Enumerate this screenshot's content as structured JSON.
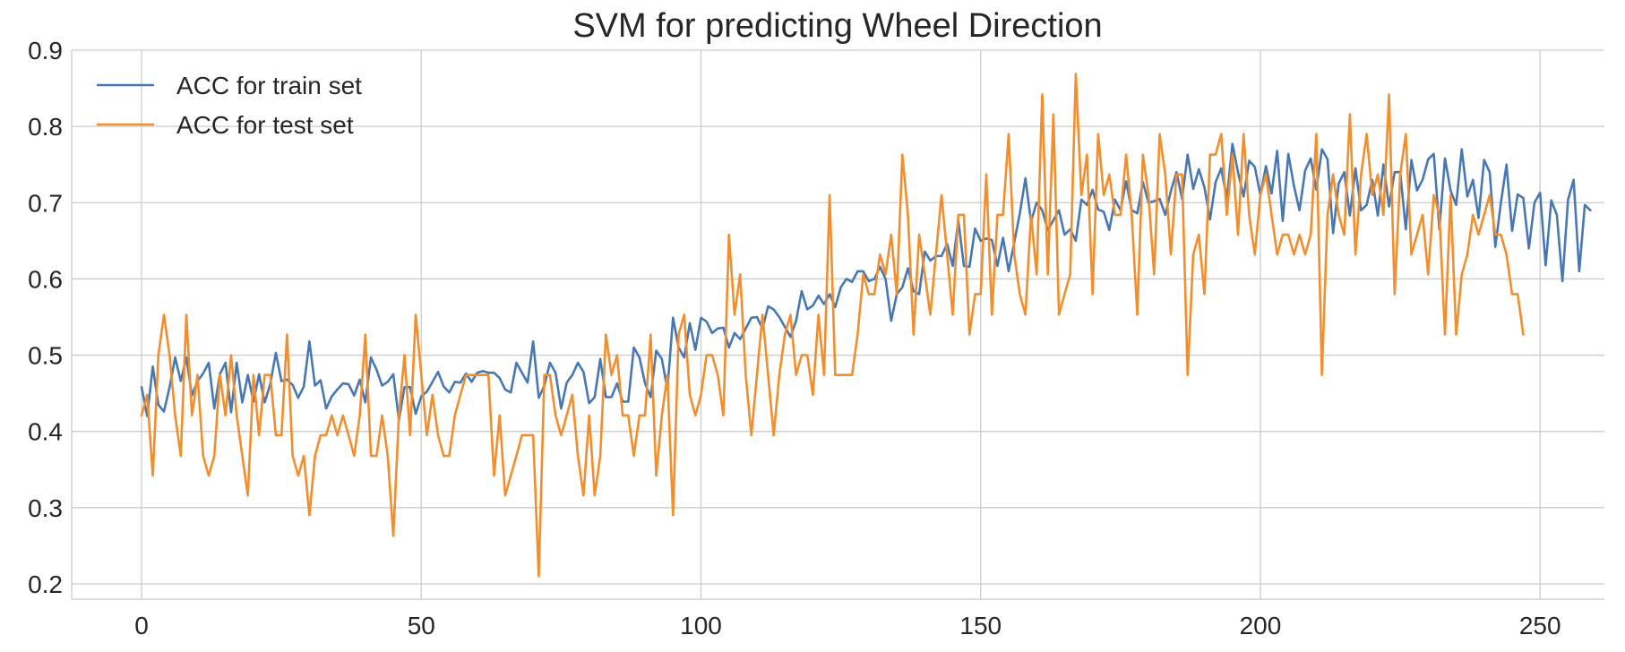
{
  "chart_data": {
    "type": "line",
    "title": "SVM for predicting Wheel Direction",
    "xlabel": "",
    "ylabel": "",
    "xlim": [
      -12.5,
      261.5
    ],
    "ylim": [
      0.18,
      0.9
    ],
    "xticks": [
      0,
      50,
      100,
      150,
      200,
      250
    ],
    "yticks": [
      0.2,
      0.3,
      0.4,
      0.5,
      0.6,
      0.7,
      0.8,
      0.9
    ],
    "grid": true,
    "legend_position": "top-left",
    "series": [
      {
        "name": "ACC for train set",
        "color": "#4878b4",
        "x_start": 0,
        "values": [
          0.458,
          0.42,
          0.485,
          0.435,
          0.426,
          0.458,
          0.497,
          0.466,
          0.497,
          0.447,
          0.466,
          0.476,
          0.49,
          0.43,
          0.475,
          0.49,
          0.425,
          0.49,
          0.438,
          0.474,
          0.439,
          0.475,
          0.438,
          0.462,
          0.503,
          0.466,
          0.468,
          0.461,
          0.444,
          0.459,
          0.518,
          0.46,
          0.467,
          0.43,
          0.446,
          0.455,
          0.463,
          0.462,
          0.447,
          0.468,
          0.438,
          0.497,
          0.481,
          0.46,
          0.465,
          0.475,
          0.415,
          0.458,
          0.458,
          0.423,
          0.446,
          0.452,
          0.465,
          0.478,
          0.459,
          0.451,
          0.465,
          0.464,
          0.476,
          0.465,
          0.477,
          0.479,
          0.477,
          0.477,
          0.47,
          0.455,
          0.451,
          0.49,
          0.477,
          0.464,
          0.518,
          0.444,
          0.46,
          0.49,
          0.477,
          0.43,
          0.464,
          0.474,
          0.49,
          0.478,
          0.437,
          0.445,
          0.495,
          0.445,
          0.445,
          0.463,
          0.439,
          0.439,
          0.51,
          0.497,
          0.463,
          0.445,
          0.506,
          0.495,
          0.455,
          0.549,
          0.51,
          0.497,
          0.542,
          0.507,
          0.549,
          0.544,
          0.529,
          0.535,
          0.536,
          0.51,
          0.529,
          0.521,
          0.535,
          0.549,
          0.55,
          0.535,
          0.564,
          0.56,
          0.55,
          0.537,
          0.524,
          0.545,
          0.584,
          0.56,
          0.565,
          0.578,
          0.567,
          0.58,
          0.563,
          0.589,
          0.6,
          0.596,
          0.61,
          0.61,
          0.597,
          0.6,
          0.616,
          0.6,
          0.545,
          0.58,
          0.589,
          0.614,
          0.584,
          0.58,
          0.636,
          0.624,
          0.63,
          0.63,
          0.646,
          0.617,
          0.677,
          0.617,
          0.616,
          0.666,
          0.65,
          0.653,
          0.651,
          0.617,
          0.654,
          0.61,
          0.648,
          0.686,
          0.732,
          0.675,
          0.7,
          0.69,
          0.664,
          0.677,
          0.69,
          0.658,
          0.665,
          0.65,
          0.704,
          0.697,
          0.717,
          0.691,
          0.688,
          0.664,
          0.704,
          0.69,
          0.728,
          0.69,
          0.686,
          0.727,
          0.7,
          0.702,
          0.705,
          0.684,
          0.715,
          0.74,
          0.705,
          0.763,
          0.718,
          0.744,
          0.72,
          0.678,
          0.727,
          0.745,
          0.705,
          0.777,
          0.74,
          0.708,
          0.755,
          0.747,
          0.71,
          0.748,
          0.712,
          0.768,
          0.676,
          0.764,
          0.722,
          0.69,
          0.742,
          0.758,
          0.717,
          0.77,
          0.757,
          0.66,
          0.725,
          0.74,
          0.683,
          0.745,
          0.69,
          0.697,
          0.73,
          0.683,
          0.75,
          0.695,
          0.74,
          0.74,
          0.665,
          0.756,
          0.716,
          0.73,
          0.757,
          0.764,
          0.665,
          0.758,
          0.716,
          0.697,
          0.77,
          0.708,
          0.73,
          0.68,
          0.756,
          0.74,
          0.642,
          0.7,
          0.75,
          0.663,
          0.711,
          0.706,
          0.64,
          0.7,
          0.713,
          0.618,
          0.703,
          0.684,
          0.597,
          0.704,
          0.73,
          0.61,
          0.697,
          0.69
        ]
      },
      {
        "name": "ACC for test set",
        "color": "#f28e2c",
        "x_start": 0,
        "values": [
          0.421,
          0.448,
          0.342,
          0.5,
          0.553,
          0.5,
          0.421,
          0.368,
          0.553,
          0.421,
          0.474,
          0.368,
          0.342,
          0.368,
          0.474,
          0.421,
          0.5,
          0.421,
          0.368,
          0.316,
          0.474,
          0.395,
          0.474,
          0.474,
          0.395,
          0.395,
          0.527,
          0.368,
          0.342,
          0.368,
          0.29,
          0.368,
          0.395,
          0.395,
          0.421,
          0.395,
          0.421,
          0.395,
          0.368,
          0.421,
          0.527,
          0.368,
          0.368,
          0.421,
          0.368,
          0.263,
          0.421,
          0.5,
          0.395,
          0.553,
          0.474,
          0.395,
          0.448,
          0.395,
          0.368,
          0.368,
          0.421,
          0.448,
          0.474,
          0.474,
          0.474,
          0.474,
          0.474,
          0.342,
          0.421,
          0.316,
          0.342,
          0.368,
          0.395,
          0.395,
          0.395,
          0.21,
          0.474,
          0.474,
          0.421,
          0.395,
          0.421,
          0.448,
          0.368,
          0.316,
          0.421,
          0.316,
          0.368,
          0.527,
          0.474,
          0.5,
          0.421,
          0.421,
          0.368,
          0.421,
          0.421,
          0.527,
          0.342,
          0.421,
          0.474,
          0.29,
          0.527,
          0.553,
          0.448,
          0.421,
          0.448,
          0.5,
          0.5,
          0.474,
          0.421,
          0.658,
          0.553,
          0.606,
          0.474,
          0.395,
          0.474,
          0.553,
          0.474,
          0.395,
          0.474,
          0.527,
          0.553,
          0.474,
          0.5,
          0.5,
          0.448,
          0.553,
          0.474,
          0.71,
          0.474,
          0.474,
          0.474,
          0.474,
          0.527,
          0.606,
          0.58,
          0.58,
          0.632,
          0.606,
          0.658,
          0.58,
          0.763,
          0.684,
          0.527,
          0.658,
          0.606,
          0.553,
          0.632,
          0.71,
          0.632,
          0.553,
          0.684,
          0.684,
          0.527,
          0.58,
          0.58,
          0.737,
          0.553,
          0.684,
          0.684,
          0.79,
          0.632,
          0.58,
          0.553,
          0.684,
          0.606,
          0.842,
          0.606,
          0.816,
          0.553,
          0.58,
          0.606,
          0.869,
          0.71,
          0.763,
          0.58,
          0.79,
          0.71,
          0.737,
          0.684,
          0.684,
          0.763,
          0.684,
          0.553,
          0.763,
          0.71,
          0.606,
          0.79,
          0.737,
          0.632,
          0.737,
          0.737,
          0.474,
          0.632,
          0.658,
          0.58,
          0.763,
          0.763,
          0.79,
          0.684,
          0.763,
          0.658,
          0.79,
          0.684,
          0.632,
          0.71,
          0.737,
          0.684,
          0.632,
          0.658,
          0.658,
          0.632,
          0.658,
          0.632,
          0.658,
          0.79,
          0.474,
          0.684,
          0.737,
          0.684,
          0.658,
          0.816,
          0.632,
          0.737,
          0.79,
          0.71,
          0.737,
          0.684,
          0.842,
          0.58,
          0.737,
          0.79,
          0.632,
          0.658,
          0.684,
          0.606,
          0.71,
          0.684,
          0.527,
          0.71,
          0.527,
          0.606,
          0.632,
          0.684,
          0.658,
          0.684,
          0.71,
          0.658,
          0.658,
          0.632,
          0.58,
          0.58,
          0.527
        ]
      }
    ]
  }
}
